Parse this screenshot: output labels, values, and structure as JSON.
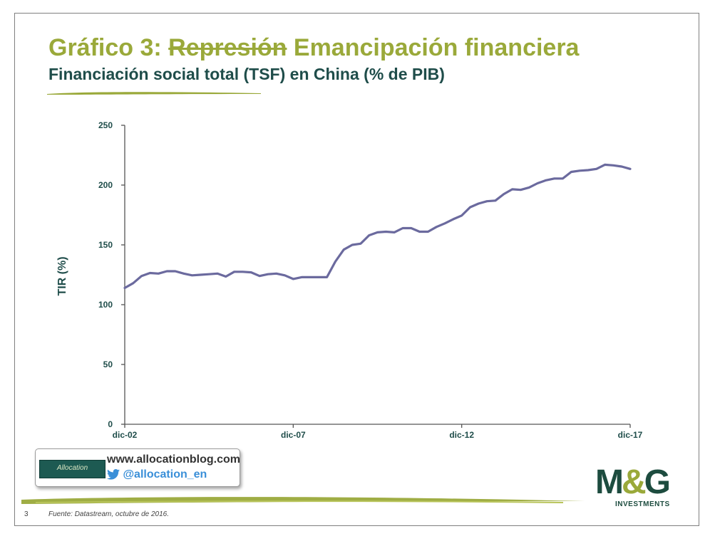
{
  "page": {
    "title_struck": "Represión",
    "title_prefix": "Gráfico 3:",
    "title_suffix": "Emancipación financiera",
    "subtitle": "Financiación social total (TSF) en China (% de PIB)",
    "page_number": "3",
    "source": "Fuente: Datastream, octubre de 2016."
  },
  "footer": {
    "logo_text": "Allocation",
    "url": "www.allocationblog.com",
    "twitter": "@allocation_en"
  },
  "brand": {
    "logo_main_left": "M",
    "logo_amp": "&",
    "logo_main_right": "G",
    "logo_sub": "INVESTMENTS"
  },
  "colors": {
    "title": "#9aa93a",
    "subtitle": "#1f4d4a",
    "series": "#6b6a9e",
    "axis_text": "#1f4d4a"
  },
  "chart_data": {
    "type": "line",
    "ylabel": "TIR (%)",
    "xlabel": "",
    "ylim": [
      0,
      250
    ],
    "yticks": [
      0,
      50,
      100,
      150,
      200,
      250
    ],
    "xlim": [
      2002.917,
      2017.917
    ],
    "xticks": [
      {
        "label": "dic-02",
        "value": 2002.917
      },
      {
        "label": "dic-07",
        "value": 2007.917
      },
      {
        "label": "dic-12",
        "value": 2012.917
      },
      {
        "label": "dic-17",
        "value": 2017.917
      }
    ],
    "grid": false,
    "series": [
      {
        "points": [
          [
            2002.917,
            114
          ],
          [
            2003.167,
            118
          ],
          [
            2003.417,
            124
          ],
          [
            2003.667,
            126.5
          ],
          [
            2003.917,
            126
          ],
          [
            2004.167,
            128
          ],
          [
            2004.417,
            128
          ],
          [
            2004.667,
            126
          ],
          [
            2004.917,
            124.5
          ],
          [
            2005.167,
            125
          ],
          [
            2005.417,
            125.5
          ],
          [
            2005.667,
            126
          ],
          [
            2005.917,
            123.5
          ],
          [
            2006.167,
            127.5
          ],
          [
            2006.417,
            127.5
          ],
          [
            2006.667,
            127
          ],
          [
            2006.917,
            124
          ],
          [
            2007.167,
            125.5
          ],
          [
            2007.417,
            126
          ],
          [
            2007.667,
            124.5
          ],
          [
            2007.917,
            121.5
          ],
          [
            2008.167,
            123
          ],
          [
            2008.417,
            123
          ],
          [
            2008.667,
            123
          ],
          [
            2008.917,
            123
          ],
          [
            2009.167,
            136
          ],
          [
            2009.417,
            146
          ],
          [
            2009.667,
            150
          ],
          [
            2009.917,
            151
          ],
          [
            2010.167,
            158
          ],
          [
            2010.417,
            160.5
          ],
          [
            2010.667,
            161
          ],
          [
            2010.917,
            160.5
          ],
          [
            2011.167,
            164
          ],
          [
            2011.417,
            164
          ],
          [
            2011.667,
            161
          ],
          [
            2011.917,
            161
          ],
          [
            2012.167,
            165
          ],
          [
            2012.417,
            168
          ],
          [
            2012.667,
            171.5
          ],
          [
            2012.917,
            174.5
          ],
          [
            2013.167,
            181.5
          ],
          [
            2013.417,
            184.5
          ],
          [
            2013.667,
            186.5
          ],
          [
            2013.917,
            187
          ],
          [
            2014.167,
            192.5
          ],
          [
            2014.417,
            196.5
          ],
          [
            2014.667,
            196
          ],
          [
            2014.917,
            198
          ],
          [
            2015.167,
            201.5
          ],
          [
            2015.417,
            204
          ],
          [
            2015.667,
            205.5
          ],
          [
            2015.917,
            205.5
          ],
          [
            2016.167,
            211
          ],
          [
            2016.417,
            212
          ],
          [
            2016.667,
            212.5
          ],
          [
            2016.917,
            213.5
          ],
          [
            2017.167,
            217
          ],
          [
            2017.417,
            216.5
          ],
          [
            2017.667,
            215.5
          ],
          [
            2017.917,
            213.5
          ]
        ]
      }
    ]
  }
}
